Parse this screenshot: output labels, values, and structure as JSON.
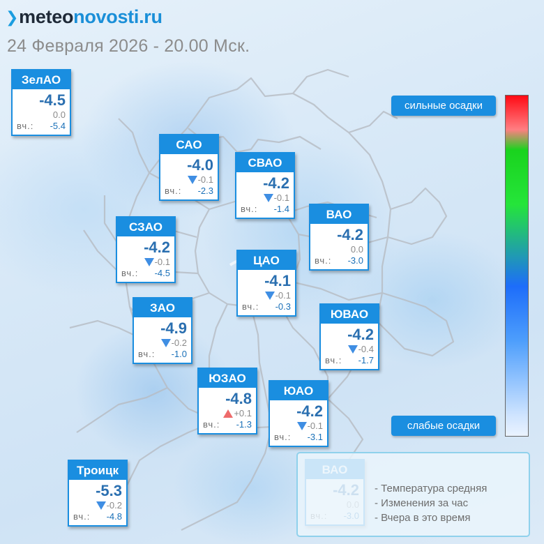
{
  "site": {
    "logo_dark": "meteo",
    "logo_blue": "novosti.ru",
    "logo_mark": "❯"
  },
  "date_line": "24 Февраля 2026 - 20.00 Мск.",
  "yesterday_label": "вч.:",
  "districts": [
    {
      "id": "zelao",
      "name": "ЗелАО",
      "temp": "-4.5",
      "change": "0.0",
      "trend": "none",
      "yesterday": "-5.4"
    },
    {
      "id": "sao",
      "name": "САО",
      "temp": "-4.0",
      "change": "-0.1",
      "trend": "down",
      "yesterday": "-2.3"
    },
    {
      "id": "svao",
      "name": "СВАО",
      "temp": "-4.2",
      "change": "-0.1",
      "trend": "down",
      "yesterday": "-1.4"
    },
    {
      "id": "vao",
      "name": "ВАО",
      "temp": "-4.2",
      "change": "0.0",
      "trend": "none",
      "yesterday": "-3.0"
    },
    {
      "id": "szao",
      "name": "СЗАО",
      "temp": "-4.2",
      "change": "-0.1",
      "trend": "down",
      "yesterday": "-4.5"
    },
    {
      "id": "cao",
      "name": "ЦАО",
      "temp": "-4.1",
      "change": "-0.1",
      "trend": "down",
      "yesterday": "-0.3"
    },
    {
      "id": "zao",
      "name": "ЗАО",
      "temp": "-4.9",
      "change": "-0.2",
      "trend": "down",
      "yesterday": "-1.0"
    },
    {
      "id": "yuvao",
      "name": "ЮВАО",
      "temp": "-4.2",
      "change": "-0.4",
      "trend": "down",
      "yesterday": "-1.7"
    },
    {
      "id": "yuzao",
      "name": "ЮЗАО",
      "temp": "-4.8",
      "change": "+0.1",
      "trend": "up",
      "yesterday": "-1.3"
    },
    {
      "id": "yuao",
      "name": "ЮАО",
      "temp": "-4.2",
      "change": "-0.1",
      "trend": "down",
      "yesterday": "-3.1"
    },
    {
      "id": "troitsk",
      "name": "Троицк",
      "temp": "-5.3",
      "change": "-0.2",
      "trend": "down",
      "yesterday": "-4.8"
    }
  ],
  "precip_scale": {
    "strong_label": "сильные осадки",
    "weak_label": "слабые осадки"
  },
  "legend": {
    "example": {
      "name": "ВАО",
      "temp": "-4.2",
      "change": "0.0",
      "trend": "none",
      "yesterday": "-3.0"
    },
    "items": [
      "- Температура средняя",
      "- Изменения за час",
      "- Вчера в это время"
    ]
  },
  "colors": {
    "accent": "#1a8ee0",
    "trend_down": "#3f8ee3",
    "trend_up": "#ee6b6b"
  }
}
